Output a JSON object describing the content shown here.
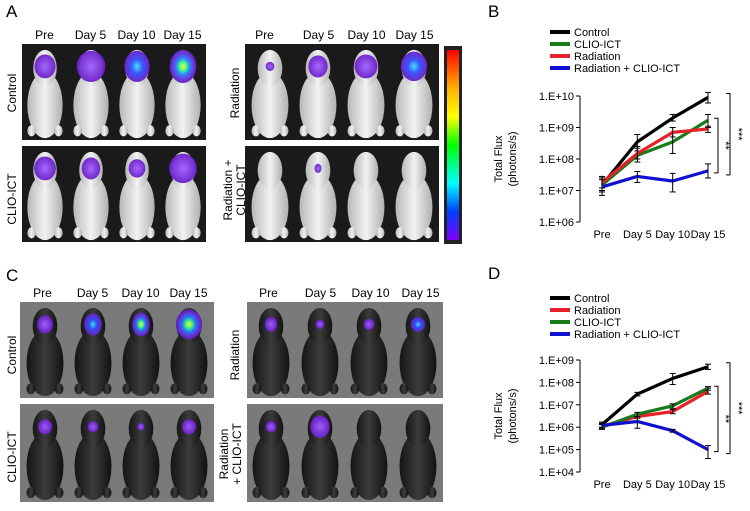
{
  "panel_letters": {
    "a": "A",
    "b": "B",
    "c": "C",
    "d": "D"
  },
  "imaging": {
    "days": [
      "Pre",
      "Day 5",
      "Day 10",
      "Day 15"
    ],
    "groups": {
      "control": "Control",
      "clio": "CLIO-ICT",
      "radiation": "Radiation",
      "combo_line1": "Radiation +",
      "combo_line2": "CLIO-ICT",
      "combo_c_line1": "Radiation",
      "combo_c_line2": "+ CLIO-ICT"
    },
    "colorbar_colors": [
      "#ff0000",
      "#ffff00",
      "#00ff00",
      "#00ffff",
      "#0000ff",
      "#8000ff"
    ]
  },
  "chart_data": [
    {
      "id": "B",
      "type": "line",
      "categories": [
        "Pre",
        "Day 5",
        "Day 10",
        "Day 15"
      ],
      "ylabel_line1": "Total Flux",
      "ylabel_line2": "(photons/s)",
      "ylim": [
        1000000,
        10000000000
      ],
      "yscale": "log",
      "yticks": [
        {
          "value": 1000000,
          "label": "1.E+06"
        },
        {
          "value": 10000000,
          "label": "1.E+07"
        },
        {
          "value": 100000000,
          "label": "1.E+08"
        },
        {
          "value": 1000000000,
          "label": "1.E+09"
        },
        {
          "value": 10000000000,
          "label": "1.E+10"
        }
      ],
      "legend": [
        "Control",
        "CLIO-ICT",
        "Radiation",
        "Radiation + CLIO-ICT"
      ],
      "series": [
        {
          "name": "Control",
          "color": "#000000",
          "values": [
            15000000,
            350000000,
            2000000000,
            9000000000
          ],
          "err": [
            [
              9000000,
              25000000
            ],
            [
              180000000,
              600000000
            ],
            [
              1600000000,
              2600000000
            ],
            [
              6000000000,
              13000000000
            ]
          ]
        },
        {
          "name": "CLIO-ICT",
          "color": "#1a7a1a",
          "values": [
            15000000,
            130000000,
            350000000,
            1700000000
          ],
          "err": [
            [
              10000000,
              25000000
            ],
            [
              80000000,
              220000000
            ],
            [
              150000000,
              700000000
            ],
            [
              1000000000,
              2600000000
            ]
          ]
        },
        {
          "name": "Radiation",
          "color": "#e8202a",
          "values": [
            18000000,
            150000000,
            700000000,
            900000000
          ],
          "err": [
            [
              12000000,
              28000000
            ],
            [
              100000000,
              250000000
            ],
            [
              500000000,
              1000000000
            ],
            [
              700000000,
              1100000000
            ]
          ]
        },
        {
          "name": "Radiation + CLIO-ICT",
          "color": "#1010d0",
          "values": [
            13000000,
            28000000,
            20000000,
            42000000
          ],
          "err": [
            [
              7000000,
              22000000
            ],
            [
              18000000,
              40000000
            ],
            [
              9000000,
              35000000
            ],
            [
              25000000,
              70000000
            ]
          ]
        }
      ],
      "significance": [
        "**",
        "***"
      ]
    },
    {
      "id": "D",
      "type": "line",
      "categories": [
        "Pre",
        "Day 5",
        "Day 10",
        "Day 15"
      ],
      "ylabel_line1": "Total Flux",
      "ylabel_line2": "(photons/s)",
      "ylim": [
        10000,
        1000000000
      ],
      "yscale": "log",
      "yticks": [
        {
          "value": 10000,
          "label": "1.E+04"
        },
        {
          "value": 100000,
          "label": "1.E+05"
        },
        {
          "value": 1000000,
          "label": "1.E+06"
        },
        {
          "value": 10000000,
          "label": "1.E+07"
        },
        {
          "value": 100000000,
          "label": "1.E+08"
        },
        {
          "value": 1000000000,
          "label": "1.E+09"
        }
      ],
      "legend": [
        "Control",
        "Radiation",
        "CLIO-ICT",
        "Radiation + CLIO-ICT"
      ],
      "series": [
        {
          "name": "Control",
          "color": "#000000",
          "values": [
            1300000,
            30000000,
            150000000,
            500000000
          ],
          "err": [
            [
              1000000,
              1700000
            ],
            [
              25000000,
              36000000
            ],
            [
              80000000,
              250000000
            ],
            [
              380000000,
              650000000
            ]
          ]
        },
        {
          "name": "Radiation",
          "color": "#e8202a",
          "values": [
            1100000,
            3000000,
            5000000,
            40000000
          ],
          "err": [
            [
              900000,
              1400000
            ],
            [
              2500000,
              3600000
            ],
            [
              4000000,
              6200000
            ],
            [
              30000000,
              55000000
            ]
          ]
        },
        {
          "name": "CLIO-ICT",
          "color": "#1a7a1a",
          "values": [
            1000000,
            3800000,
            9000000,
            55000000
          ],
          "err": [
            [
              800000,
              1300000
            ],
            [
              3000000,
              4600000
            ],
            [
              7000000,
              11000000
            ],
            [
              45000000,
              65000000
            ]
          ]
        },
        {
          "name": "Radiation + CLIO-ICT",
          "color": "#1010d0",
          "values": [
            1200000,
            1800000,
            700000,
            100000
          ],
          "err": [
            [
              900000,
              1500000
            ],
            [
              900000,
              3000000
            ],
            [
              600000,
              800000
            ],
            [
              40000,
              150000
            ]
          ]
        }
      ],
      "significance": [
        "**",
        "***"
      ]
    }
  ]
}
